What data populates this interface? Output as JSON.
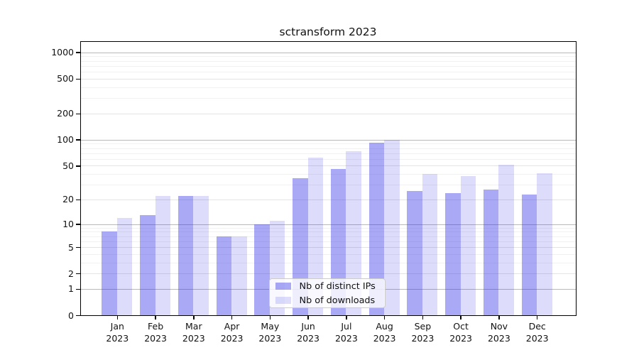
{
  "title": {
    "text": "sctransform 2023"
  },
  "chart_data": {
    "type": "bar",
    "title": "sctransform 2023",
    "categories": [
      "Jan",
      "Feb",
      "Mar",
      "Apr",
      "May",
      "Jun",
      "Jul",
      "Aug",
      "Sep",
      "Oct",
      "Nov",
      "Dec"
    ],
    "x_year_label": "2023",
    "series": [
      {
        "name": "Nb of distinct IPs",
        "color": "rgba(50,50,230,0.42)",
        "values": [
          8,
          13,
          22,
          7,
          10,
          36,
          46,
          93,
          25,
          24,
          26,
          23
        ]
      },
      {
        "name": "Nb of downloads",
        "color": "rgba(50,50,230,0.165)",
        "values": [
          12,
          22,
          22,
          7,
          11,
          62,
          74,
          100,
          40,
          38,
          51,
          41
        ]
      }
    ],
    "y_axis": {
      "scale": "log1p",
      "ticks": [
        0,
        1,
        2,
        5,
        10,
        20,
        50,
        100,
        200,
        500,
        1000
      ],
      "tick_labels": [
        "0",
        "1",
        "2",
        "5",
        "10",
        "20",
        "50",
        "100",
        "200",
        "500",
        "1000"
      ],
      "minor_ticks": [
        3,
        4,
        6,
        7,
        8,
        9,
        30,
        40,
        60,
        70,
        80,
        90,
        300,
        400,
        600,
        700,
        800,
        900
      ],
      "range": [
        0,
        1300
      ]
    },
    "grid": {
      "on": true,
      "decade_line_color": "#b9b9b9",
      "labeled_line_color": "#e3e3e3",
      "minor_line_color": "#f1f1f1"
    },
    "legend_position": "bottom-center"
  },
  "colors": {
    "distinct_ips_bar": "rgba(50,50,230,0.42)",
    "downloads_bar": "rgba(50,50,230,0.165)",
    "axis": "#000000",
    "background": "#ffffff"
  }
}
